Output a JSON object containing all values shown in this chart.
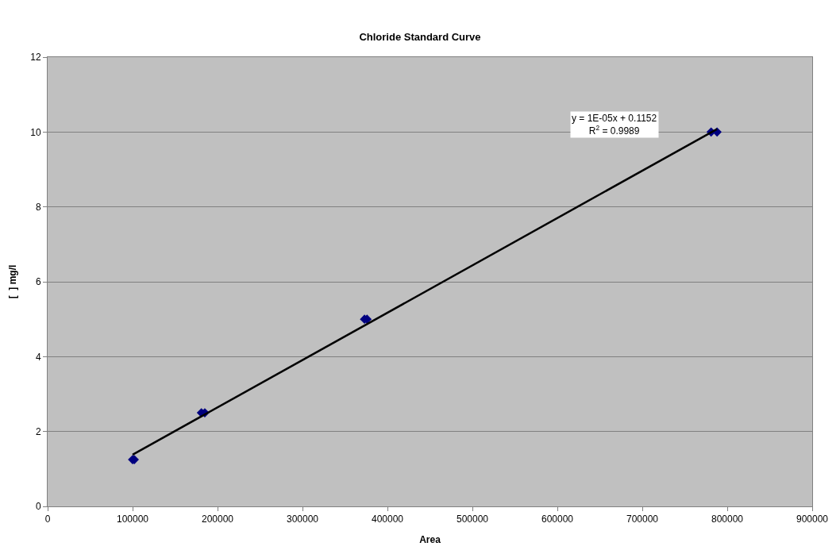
{
  "chart_data": {
    "type": "scatter",
    "title": "Chloride Standard Curve",
    "xlabel": "Area",
    "ylabel": "[  ] mg/l",
    "xlim": [
      0,
      900000
    ],
    "xticks": [
      0,
      100000,
      200000,
      300000,
      400000,
      500000,
      600000,
      700000,
      800000,
      900000
    ],
    "ylim": [
      0,
      12
    ],
    "yticks": [
      0,
      2,
      4,
      6,
      8,
      10,
      12
    ],
    "grid": "y",
    "legend": false,
    "marker": "diamond",
    "series": [
      {
        "color": "#000080",
        "x": [
          100000,
          102000,
          181000,
          185000,
          373000,
          376000,
          781000,
          788000
        ],
        "values": [
          1.25,
          1.25,
          2.5,
          2.5,
          5,
          5,
          10,
          10
        ]
      },
      {
        "type": "line",
        "color": "#000000",
        "x": [
          100000,
          788000
        ],
        "values": [
          1.38,
          10.08
        ],
        "marker": "none"
      }
    ],
    "annotations": [
      "y = 1E-05x + 0.1152\nR$^{2}$ = 0.9989"
    ]
  }
}
